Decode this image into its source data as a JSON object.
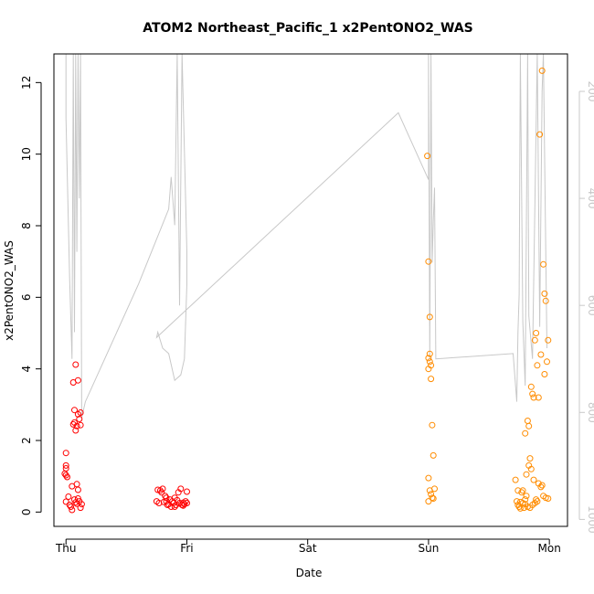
{
  "chart_data": {
    "type": "scatter",
    "title": "ATOM2 Northeast_Pacific_1 x2PentONO2_WAS",
    "xlabel": "Date",
    "ylabel": "x2PentONO2_WAS",
    "x_tick_labels": [
      "Thu",
      "Fri",
      "Sat",
      "Sun",
      "Mon"
    ],
    "xlim": [
      -0.1,
      4.15
    ],
    "ylim": [
      -0.4,
      12.8
    ],
    "y_ticks": [
      0,
      2,
      4,
      6,
      8,
      10,
      12
    ],
    "secondary_axis": {
      "label": "",
      "ticks": [
        200,
        400,
        600,
        800,
        1000
      ],
      "range": [
        130,
        1013
      ],
      "reversed": true,
      "color": "#c8c8c8"
    },
    "grid": false,
    "legend": "none",
    "colors": {
      "series1": "#ff0000",
      "series2": "#ff8c00",
      "altitude_trace": "#c8c8c8"
    },
    "series": [
      {
        "color": "#ff0000",
        "points": [
          [
            0.0,
            1.65
          ],
          [
            0.0,
            1.3
          ],
          [
            0.0,
            1.22
          ],
          [
            -0.01,
            1.07
          ],
          [
            0.0,
            1.03
          ],
          [
            0.01,
            0.98
          ],
          [
            0.02,
            0.43
          ],
          [
            0.0,
            0.29
          ],
          [
            0.03,
            0.2
          ],
          [
            0.05,
            0.06
          ],
          [
            0.05,
            0.72
          ],
          [
            0.06,
            2.45
          ],
          [
            0.07,
            2.5
          ],
          [
            0.06,
            3.62
          ],
          [
            0.07,
            2.85
          ],
          [
            0.08,
            2.28
          ],
          [
            0.09,
            2.4
          ],
          [
            0.08,
            0.27
          ],
          [
            0.09,
            0.23
          ],
          [
            0.1,
            0.38
          ],
          [
            0.1,
            2.73
          ],
          [
            0.11,
            2.6
          ],
          [
            0.12,
            2.43
          ],
          [
            0.1,
            3.68
          ],
          [
            0.08,
            4.12
          ],
          [
            0.09,
            0.78
          ],
          [
            0.1,
            0.62
          ],
          [
            0.11,
            0.3
          ],
          [
            0.12,
            0.12
          ],
          [
            0.12,
            2.78
          ],
          [
            0.13,
            0.22
          ],
          [
            0.07,
            0.35
          ],
          [
            0.04,
            0.15
          ],
          [
            0.75,
            0.3
          ],
          [
            0.76,
            0.62
          ],
          [
            0.77,
            0.25
          ],
          [
            0.78,
            0.6
          ],
          [
            0.79,
            0.55
          ],
          [
            0.8,
            0.65
          ],
          [
            0.81,
            0.28
          ],
          [
            0.82,
            0.45
          ],
          [
            0.83,
            0.3
          ],
          [
            0.84,
            0.2
          ],
          [
            0.85,
            0.22
          ],
          [
            0.86,
            0.35
          ],
          [
            0.87,
            0.15
          ],
          [
            0.88,
            0.3
          ],
          [
            0.89,
            0.25
          ],
          [
            0.9,
            0.4
          ],
          [
            0.91,
            0.2
          ],
          [
            0.92,
            0.33
          ],
          [
            0.93,
            0.55
          ],
          [
            0.94,
            0.25
          ],
          [
            0.95,
            0.65
          ],
          [
            0.96,
            0.2
          ],
          [
            0.97,
            0.18
          ],
          [
            0.98,
            0.22
          ],
          [
            0.99,
            0.3
          ],
          [
            1.0,
            0.25
          ],
          [
            1.0,
            0.57
          ],
          [
            0.97,
            0.26
          ],
          [
            0.9,
            0.15
          ],
          [
            0.83,
            0.4
          ]
        ]
      },
      {
        "color": "#ff8c00",
        "points": [
          [
            2.99,
            9.95
          ],
          [
            3.0,
            7.0
          ],
          [
            3.01,
            5.45
          ],
          [
            3.0,
            4.3
          ],
          [
            3.01,
            4.2
          ],
          [
            3.02,
            4.1
          ],
          [
            3.0,
            4.0
          ],
          [
            3.01,
            4.42
          ],
          [
            3.02,
            3.72
          ],
          [
            3.03,
            2.43
          ],
          [
            3.04,
            1.58
          ],
          [
            3.0,
            0.95
          ],
          [
            3.01,
            0.6
          ],
          [
            3.02,
            0.5
          ],
          [
            3.03,
            0.4
          ],
          [
            3.04,
            0.38
          ],
          [
            3.0,
            0.3
          ],
          [
            3.05,
            0.65
          ],
          [
            3.72,
            0.9
          ],
          [
            3.73,
            0.3
          ],
          [
            3.74,
            0.2
          ],
          [
            3.75,
            0.15
          ],
          [
            3.76,
            0.1
          ],
          [
            3.77,
            0.55
          ],
          [
            3.78,
            0.25
          ],
          [
            3.79,
            0.12
          ],
          [
            3.8,
            0.35
          ],
          [
            3.81,
            1.05
          ],
          [
            3.82,
            2.55
          ],
          [
            3.83,
            2.4
          ],
          [
            3.84,
            1.5
          ],
          [
            3.85,
            3.5
          ],
          [
            3.86,
            3.3
          ],
          [
            3.87,
            3.2
          ],
          [
            3.88,
            4.8
          ],
          [
            3.89,
            5.0
          ],
          [
            3.9,
            4.1
          ],
          [
            3.91,
            3.2
          ],
          [
            3.92,
            10.55
          ],
          [
            3.93,
            4.4
          ],
          [
            3.94,
            12.33
          ],
          [
            3.95,
            6.92
          ],
          [
            3.96,
            6.1
          ],
          [
            3.97,
            5.9
          ],
          [
            3.98,
            4.2
          ],
          [
            3.99,
            4.8
          ],
          [
            3.96,
            3.85
          ],
          [
            3.94,
            0.75
          ],
          [
            3.93,
            0.7
          ],
          [
            3.95,
            0.45
          ],
          [
            3.97,
            0.4
          ],
          [
            3.99,
            0.38
          ],
          [
            3.9,
            0.3
          ],
          [
            3.88,
            0.25
          ],
          [
            3.86,
            0.2
          ],
          [
            3.84,
            0.12
          ],
          [
            3.82,
            0.15
          ],
          [
            3.8,
            0.22
          ],
          [
            3.78,
            0.6
          ],
          [
            3.8,
            2.2
          ],
          [
            3.83,
            1.3
          ],
          [
            3.85,
            1.2
          ],
          [
            3.87,
            0.9
          ],
          [
            3.89,
            0.35
          ],
          [
            3.91,
            0.8
          ],
          [
            3.76,
            0.28
          ],
          [
            3.74,
            0.6
          ],
          [
            3.81,
            0.45
          ]
        ]
      }
    ],
    "altitude_trace_points": [
      [
        0.0,
        130
      ],
      [
        0.0,
        250
      ],
      [
        0.03,
        550
      ],
      [
        0.05,
        700
      ],
      [
        0.06,
        130
      ],
      [
        0.07,
        650
      ],
      [
        0.08,
        130
      ],
      [
        0.09,
        500
      ],
      [
        0.1,
        130
      ],
      [
        0.11,
        400
      ],
      [
        0.12,
        130
      ],
      [
        0.13,
        810
      ],
      [
        0.16,
        780
      ],
      [
        0.6,
        560
      ],
      [
        0.85,
        420
      ],
      [
        0.87,
        360
      ],
      [
        0.9,
        450
      ],
      [
        0.92,
        130
      ],
      [
        0.94,
        600
      ],
      [
        0.96,
        130
      ],
      [
        1.0,
        500
      ],
      [
        1.0,
        560
      ],
      [
        0.98,
        700
      ],
      [
        0.95,
        730
      ],
      [
        0.9,
        740
      ],
      [
        0.85,
        690
      ],
      [
        0.8,
        680
      ],
      [
        0.76,
        650
      ],
      [
        0.75,
        660
      ],
      [
        2.75,
        240
      ],
      [
        3.0,
        365
      ],
      [
        3.0,
        130
      ],
      [
        3.01,
        700
      ],
      [
        3.02,
        130
      ],
      [
        3.03,
        520
      ],
      [
        3.04,
        440
      ],
      [
        3.05,
        380
      ],
      [
        3.06,
        700
      ],
      [
        3.7,
        690
      ],
      [
        3.73,
        780
      ],
      [
        3.74,
        650
      ],
      [
        3.75,
        580
      ],
      [
        3.76,
        130
      ],
      [
        3.78,
        630
      ],
      [
        3.8,
        750
      ],
      [
        3.82,
        130
      ],
      [
        3.83,
        620
      ],
      [
        3.86,
        700
      ],
      [
        3.9,
        130
      ],
      [
        3.92,
        640
      ],
      [
        3.94,
        200
      ],
      [
        3.95,
        130
      ],
      [
        3.98,
        680
      ]
    ]
  }
}
